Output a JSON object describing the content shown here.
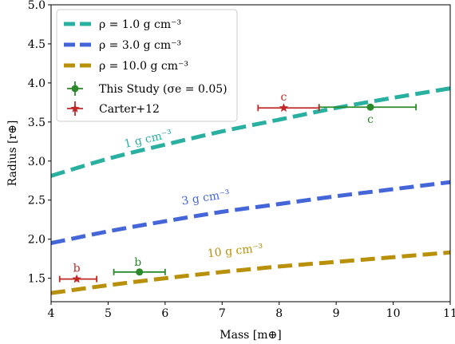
{
  "chart_data": {
    "type": "scatter",
    "xlabel": "Mass [m⊕]",
    "ylabel": "Radius [r⊕]",
    "xlim": [
      4,
      11
    ],
    "ylim": [
      1.2,
      5.0
    ],
    "xticks": [
      "4",
      "5",
      "6",
      "7",
      "8",
      "9",
      "10",
      "11"
    ],
    "yticks": [
      "1.5",
      "2.0",
      "2.5",
      "3.0",
      "3.5",
      "4.0",
      "4.5",
      "5.0"
    ],
    "legend_position": "top-left",
    "curves": [
      {
        "name": "ρ = 1.0 g cm⁻³",
        "label": "1 g cm⁻³",
        "color": "#2ab0a0",
        "x": [
          4,
          5,
          6,
          7,
          8,
          9,
          10,
          11
        ],
        "y": [
          2.81,
          3.03,
          3.21,
          3.38,
          3.53,
          3.68,
          3.81,
          3.93
        ]
      },
      {
        "name": "ρ = 3.0 g cm⁻³",
        "label": "3 g cm⁻³",
        "color": "#4466d8",
        "x": [
          4,
          5,
          6,
          7,
          8,
          9,
          10,
          11
        ],
        "y": [
          1.95,
          2.1,
          2.23,
          2.35,
          2.45,
          2.55,
          2.64,
          2.73
        ]
      },
      {
        "name": "ρ = 10.0 g cm⁻³",
        "label": "10 g cm⁻³",
        "color": "#b8900a",
        "x": [
          4,
          5,
          6,
          7,
          8,
          9,
          10,
          11
        ],
        "y": [
          1.31,
          1.41,
          1.5,
          1.58,
          1.65,
          1.71,
          1.77,
          1.83
        ]
      }
    ],
    "series": [
      {
        "name": "This Study (σe = 0.05)",
        "color": "#2a8a2a",
        "marker": "circle",
        "points": [
          {
            "label": "b",
            "x": 5.55,
            "y": 1.58,
            "xerr": [
              0.45,
              0.45
            ]
          },
          {
            "label": "c",
            "x": 9.6,
            "y": 3.69,
            "xerr": [
              0.9,
              0.8
            ]
          }
        ]
      },
      {
        "name": "Carter+12",
        "color": "#c02828",
        "marker": "star",
        "points": [
          {
            "label": "b",
            "x": 4.45,
            "y": 1.49,
            "xerr": [
              0.3,
              0.35
            ]
          },
          {
            "label": "c",
            "x": 8.08,
            "y": 3.68,
            "xerr": [
              0.45,
              0.62
            ]
          }
        ]
      }
    ]
  }
}
